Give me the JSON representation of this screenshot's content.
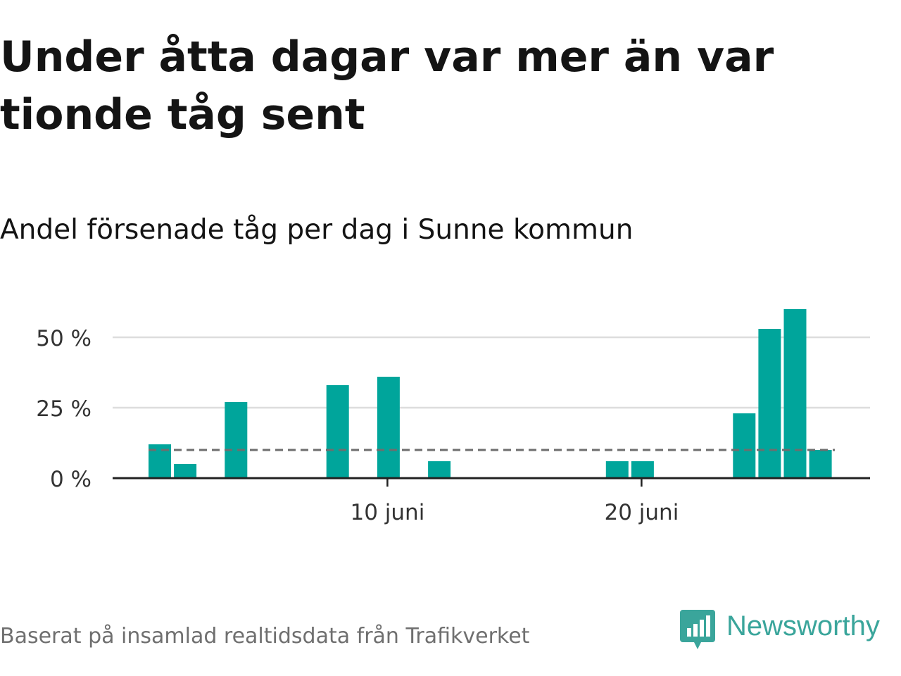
{
  "title": "Under åtta dagar var mer än var tionde tåg sent",
  "subtitle": "Andel försenade tåg per dag i Sunne kommun",
  "source": "Baserat på insamlad realtidsdata från Trafikverket",
  "brand": {
    "name": "Newsworthy",
    "icon": "newsworthy-logo-icon",
    "color": "#3aa59b"
  },
  "colors": {
    "bar": "#00a59b",
    "reference": "#6e6e6e",
    "grid": "#dddddd",
    "axis": "#222222"
  },
  "chart_data": {
    "type": "bar",
    "x_unit": "day of June",
    "x": [
      1,
      2,
      3,
      4,
      5,
      6,
      7,
      8,
      9,
      10,
      11,
      12,
      13,
      14,
      15,
      16,
      17,
      18,
      19,
      20,
      21,
      22,
      23,
      24,
      25,
      26,
      27,
      28,
      29
    ],
    "values": [
      12,
      5,
      0,
      27,
      0,
      0,
      0,
      33,
      0,
      36,
      0,
      6,
      0,
      0,
      0,
      0,
      0,
      0,
      6,
      6,
      0,
      0,
      0,
      23,
      53,
      60,
      10,
      0,
      0
    ],
    "y_ticks": [
      0,
      25,
      50
    ],
    "y_tick_labels": [
      "0 %",
      "25 %",
      "50 %"
    ],
    "x_ticks": [
      10,
      20
    ],
    "x_tick_labels": [
      "10 juni",
      "20 juni"
    ],
    "ylim": [
      0,
      60
    ],
    "reference_line": 10,
    "grid": true
  }
}
